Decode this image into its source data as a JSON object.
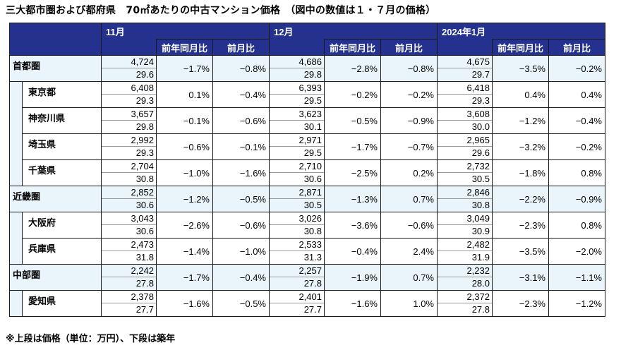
{
  "title": "三大都市圏および都府県　70㎡あたりの中古マンション価格　（図中の数値は１・７月の価格）",
  "footnote": "※上段は価格（単位：万円）、下段は築年",
  "header": {
    "months": [
      "11月",
      "12月",
      "2024年1月"
    ],
    "yoy_label": "前年同月比",
    "mom_label": "前月比"
  },
  "rows": [
    {
      "name": "首都圏",
      "type": "region",
      "m": [
        {
          "price": "4,724",
          "age": "29.6",
          "yoy": "−1.7%",
          "mom": "−0.8%"
        },
        {
          "price": "4,686",
          "age": "29.8",
          "yoy": "−2.8%",
          "mom": "−0.8%"
        },
        {
          "price": "4,675",
          "age": "29.7",
          "yoy": "−3.5%",
          "mom": "−0.2%"
        }
      ]
    },
    {
      "name": "東京都",
      "type": "pref",
      "m": [
        {
          "price": "6,408",
          "age": "29.3",
          "yoy": "0.1%",
          "mom": "−0.4%"
        },
        {
          "price": "6,393",
          "age": "29.5",
          "yoy": "−0.2%",
          "mom": "−0.2%"
        },
        {
          "price": "6,418",
          "age": "29.3",
          "yoy": "0.4%",
          "mom": "0.4%"
        }
      ]
    },
    {
      "name": "神奈川県",
      "type": "pref",
      "m": [
        {
          "price": "3,657",
          "age": "29.8",
          "yoy": "−0.1%",
          "mom": "−0.6%"
        },
        {
          "price": "3,623",
          "age": "30.1",
          "yoy": "−0.5%",
          "mom": "−0.9%"
        },
        {
          "price": "3,608",
          "age": "30.0",
          "yoy": "−1.2%",
          "mom": "−0.4%"
        }
      ]
    },
    {
      "name": "埼玉県",
      "type": "pref",
      "m": [
        {
          "price": "2,992",
          "age": "29.3",
          "yoy": "−0.6%",
          "mom": "−0.1%"
        },
        {
          "price": "2,971",
          "age": "29.5",
          "yoy": "−1.7%",
          "mom": "−0.7%"
        },
        {
          "price": "2,965",
          "age": "29.6",
          "yoy": "−3.2%",
          "mom": "−0.2%"
        }
      ]
    },
    {
      "name": "千葉県",
      "type": "pref",
      "m": [
        {
          "price": "2,704",
          "age": "30.8",
          "yoy": "−1.0%",
          "mom": "−1.6%"
        },
        {
          "price": "2,710",
          "age": "30.6",
          "yoy": "−2.5%",
          "mom": "0.2%"
        },
        {
          "price": "2,732",
          "age": "30.5",
          "yoy": "−1.8%",
          "mom": "0.8%"
        }
      ]
    },
    {
      "name": "近畿圏",
      "type": "region",
      "m": [
        {
          "price": "2,852",
          "age": "30.6",
          "yoy": "−1.2%",
          "mom": "−0.5%"
        },
        {
          "price": "2,871",
          "age": "30.5",
          "yoy": "−1.3%",
          "mom": "0.7%"
        },
        {
          "price": "2,846",
          "age": "30.8",
          "yoy": "−2.2%",
          "mom": "−0.9%"
        }
      ]
    },
    {
      "name": "大阪府",
      "type": "pref",
      "m": [
        {
          "price": "3,043",
          "age": "30.6",
          "yoy": "−2.6%",
          "mom": "−0.6%"
        },
        {
          "price": "3,026",
          "age": "30.8",
          "yoy": "−3.6%",
          "mom": "−0.6%"
        },
        {
          "price": "3,049",
          "age": "30.9",
          "yoy": "−2.3%",
          "mom": "0.8%"
        }
      ]
    },
    {
      "name": "兵庫県",
      "type": "pref",
      "m": [
        {
          "price": "2,473",
          "age": "31.8",
          "yoy": "−1.4%",
          "mom": "−1.0%"
        },
        {
          "price": "2,533",
          "age": "31.3",
          "yoy": "−0.4%",
          "mom": "2.4%"
        },
        {
          "price": "2,482",
          "age": "31.9",
          "yoy": "−3.5%",
          "mom": "−2.0%"
        }
      ]
    },
    {
      "name": "中部圏",
      "type": "region",
      "m": [
        {
          "price": "2,242",
          "age": "27.8",
          "yoy": "−1.7%",
          "mom": "−0.4%"
        },
        {
          "price": "2,257",
          "age": "27.8",
          "yoy": "−1.9%",
          "mom": "0.7%"
        },
        {
          "price": "2,232",
          "age": "28.0",
          "yoy": "−3.1%",
          "mom": "−1.1%"
        }
      ]
    },
    {
      "name": "愛知県",
      "type": "pref",
      "m": [
        {
          "price": "2,378",
          "age": "27.7",
          "yoy": "−1.6%",
          "mom": "−0.5%"
        },
        {
          "price": "2,401",
          "age": "27.7",
          "yoy": "−1.6%",
          "mom": "1.0%"
        },
        {
          "price": "2,372",
          "age": "27.8",
          "yoy": "−2.3%",
          "mom": "−1.2%"
        }
      ]
    }
  ]
}
